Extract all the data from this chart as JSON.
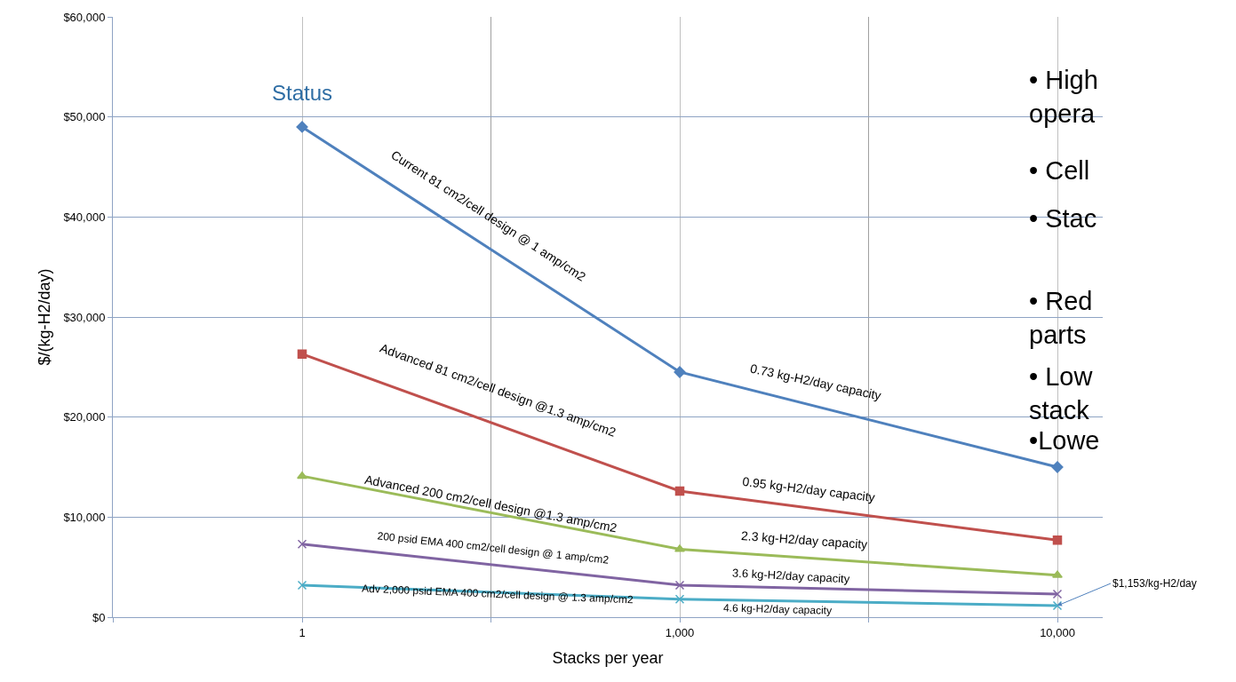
{
  "chart_data": {
    "type": "line",
    "xlabel": "Stacks per year",
    "ylabel": "$/(kg-H2/day)",
    "categories": [
      "1",
      "1,000",
      "10,000"
    ],
    "ylim": [
      0,
      60000
    ],
    "yticks": [
      {
        "value": 0,
        "label": "$0"
      },
      {
        "value": 10000,
        "label": "$10,000"
      },
      {
        "value": 20000,
        "label": "$20,000"
      },
      {
        "value": 30000,
        "label": "$30,000"
      },
      {
        "value": 40000,
        "label": "$40,000"
      },
      {
        "value": 50000,
        "label": "$50,000"
      },
      {
        "value": 60000,
        "label": "$60,000"
      }
    ],
    "grid": true,
    "legend": false,
    "line_style": "solid",
    "series": [
      {
        "name": "Current 81 cm2/cell design @ 1 amp/cm2",
        "color": "#4f81bd",
        "marker": "diamond",
        "values": [
          49000,
          24500,
          15000
        ]
      },
      {
        "name": "Advanced 81 cm2/cell design @1.3 amp/cm2",
        "color": "#c0504d",
        "marker": "square",
        "values": [
          26300,
          12600,
          7700
        ]
      },
      {
        "name": "Advanced 200 cm2/cell design @1.3 amp/cm2",
        "color": "#9bbb59",
        "marker": "triangle",
        "values": [
          14100,
          6800,
          4200
        ]
      },
      {
        "name": "200 psid EMA 400 cm2/cell design @ 1 amp/cm2",
        "color": "#8064a2",
        "marker": "cross",
        "values": [
          7300,
          3200,
          2300
        ]
      },
      {
        "name": "Adv 2,000 psid EMA 400 cm2/cell design @ 1.3 amp/cm2",
        "color": "#4bacc6",
        "marker": "cross",
        "values": [
          3200,
          1800,
          1153
        ]
      }
    ],
    "annotations": [
      {
        "text": "Status",
        "x": "1",
        "y": 49000
      },
      "0.73 kg-H2/day capacity",
      "0.95 kg-H2/day capacity",
      "2.3 kg-H2/day capacity",
      "3.6 kg-H2/day capacity",
      "4.6 kg-H2/day capacity",
      {
        "text": "$1,153/kg-H2/day",
        "x": "10,000",
        "y": 1153
      },
      "• High\nopera",
      "• Cell",
      "• Stac",
      "• Red\nparts",
      "• Low\nstack",
      "•Lowe"
    ]
  }
}
